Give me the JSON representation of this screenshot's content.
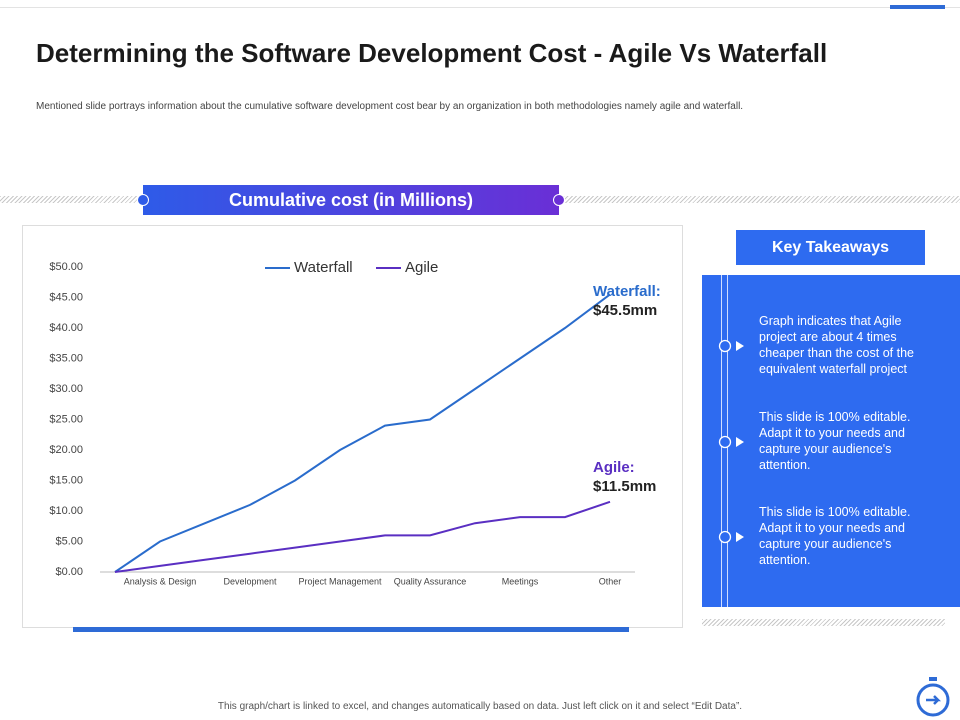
{
  "title": "Determining the Software Development Cost - Agile Vs Waterfall",
  "subtitle": "Mentioned slide portrays information about the cumulative software development cost bear by an organization in both methodologies namely agile and waterfall.",
  "banner": "Cumulative cost (in Millions)",
  "takeaways": {
    "heading": "Key Takeaways",
    "items": [
      "Graph indicates that  Agile project are about 4 times cheaper than the cost of the equivalent  waterfall project",
      "This slide is 100% editable. Adapt it to your needs and capture your audience's attention.",
      "This slide is 100% editable. Adapt it to your needs and capture your audience's attention."
    ]
  },
  "footer": "This graph/chart is linked to excel, and changes automatically based on data. Just left click on it and select “Edit Data”.",
  "chart_data": {
    "type": "line",
    "categories": [
      null,
      "Analysis & Design",
      null,
      "Development",
      null,
      "Project Management",
      null,
      "Quality Assurance",
      null,
      "Meetings",
      null,
      "Other"
    ],
    "series": [
      {
        "name": "Waterfall",
        "color": "#2a6ccc",
        "values": [
          0,
          5,
          8,
          11,
          15,
          20,
          24,
          25,
          30,
          35,
          40,
          45.5
        ]
      },
      {
        "name": "Agile",
        "color": "#5a2fc2",
        "values": [
          0,
          1,
          2,
          3,
          4,
          5,
          6,
          6,
          8,
          9,
          9,
          11.5
        ]
      }
    ],
    "ylim": [
      0,
      50
    ],
    "yticks": [
      {
        "value": 0,
        "label": "$0.00"
      },
      {
        "value": 5,
        "label": "$5.00"
      },
      {
        "value": 10,
        "label": "$10.00"
      },
      {
        "value": 15,
        "label": "$15.00"
      },
      {
        "value": 20,
        "label": "$20.00"
      },
      {
        "value": 25,
        "label": "$25.00"
      },
      {
        "value": 30,
        "label": "$30.00"
      },
      {
        "value": 35,
        "label": "$35.00"
      },
      {
        "value": 40,
        "label": "$40.00"
      },
      {
        "value": 45,
        "label": "$45.00"
      },
      {
        "value": 50,
        "label": "$50.00"
      }
    ],
    "legend": "top",
    "annotations": [
      "Waterfall:",
      "$45.5mm",
      "Agile:",
      "$11.5mm"
    ]
  }
}
